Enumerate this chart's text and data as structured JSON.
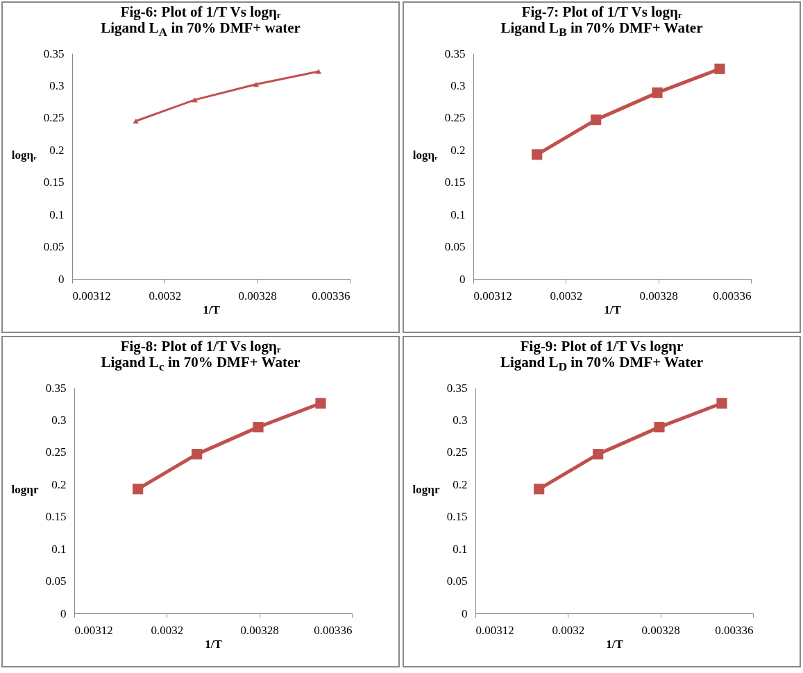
{
  "chart_data": [
    {
      "type": "line",
      "title": "Fig-6: Plot of 1/T Vs logηᵣ",
      "subtitle": "Ligand L$_{A}$ in 70% DMF+ water",
      "xlabel": "1/T",
      "ylabel": "logηᵣ",
      "x": [
        0.003175,
        0.003226,
        0.003279,
        0.003333
      ],
      "marker": "triangle",
      "line_style": "solid",
      "series": [
        {
          "color": "#c0504d",
          "values": [
            0.245,
            0.278,
            0.302,
            0.322
          ]
        }
      ],
      "xlim": [
        0.00312,
        0.00336
      ],
      "xticks": [
        0.00312,
        0.0032,
        0.00328,
        0.00336
      ],
      "ylim": [
        0,
        0.35
      ],
      "yticks": [
        0,
        0.05,
        0.1,
        0.15,
        0.2,
        0.25,
        0.3,
        0.35
      ]
    },
    {
      "type": "line",
      "title": "Fig-7: Plot of 1/T Vs logηᵣ",
      "subtitle": "Ligand L$_{B}$ in 70% DMF+ Water",
      "xlabel": "1/T",
      "ylabel": "logηᵣ",
      "x": [
        0.003175,
        0.003226,
        0.003279,
        0.003333
      ],
      "marker": "square",
      "line_style": "solid",
      "series": [
        {
          "color": "#c0504d",
          "values": [
            0.193,
            0.247,
            0.289,
            0.326
          ]
        }
      ],
      "xlim": [
        0.00312,
        0.00336
      ],
      "xticks": [
        0.00312,
        0.0032,
        0.00328,
        0.00336
      ],
      "ylim": [
        0,
        0.35
      ],
      "yticks": [
        0,
        0.05,
        0.1,
        0.15,
        0.2,
        0.25,
        0.3,
        0.35
      ]
    },
    {
      "type": "line",
      "title": "Fig-8: Plot of 1/T Vs logηᵣ",
      "subtitle": "Ligand L$_{c}$ in 70% DMF+ Water",
      "xlabel": "1/T",
      "ylabel": "logηr",
      "x": [
        0.003175,
        0.003226,
        0.003279,
        0.003333
      ],
      "marker": "square",
      "line_style": "solid",
      "series": [
        {
          "color": "#c0504d",
          "values": [
            0.193,
            0.247,
            0.289,
            0.326
          ]
        }
      ],
      "xlim": [
        0.00312,
        0.00336
      ],
      "xticks": [
        0.00312,
        0.0032,
        0.00328,
        0.00336
      ],
      "ylim": [
        0,
        0.35
      ],
      "yticks": [
        0,
        0.05,
        0.1,
        0.15,
        0.2,
        0.25,
        0.3,
        0.35
      ]
    },
    {
      "type": "line",
      "title": "Fig-9: Plot of 1/T Vs logηr",
      "subtitle": "Ligand L$_{D}$ in 70% DMF+ Water",
      "xlabel": "1/T",
      "ylabel": "logηr",
      "x": [
        0.003175,
        0.003226,
        0.003279,
        0.003333
      ],
      "marker": "square",
      "line_style": "solid",
      "series": [
        {
          "color": "#c0504d",
          "values": [
            0.193,
            0.247,
            0.289,
            0.326
          ]
        }
      ],
      "xlim": [
        0.00312,
        0.00336
      ],
      "xticks": [
        0.00312,
        0.0032,
        0.00328,
        0.00336
      ],
      "ylim": [
        0,
        0.35
      ],
      "yticks": [
        0,
        0.05,
        0.1,
        0.15,
        0.2,
        0.25,
        0.3,
        0.35
      ]
    }
  ]
}
